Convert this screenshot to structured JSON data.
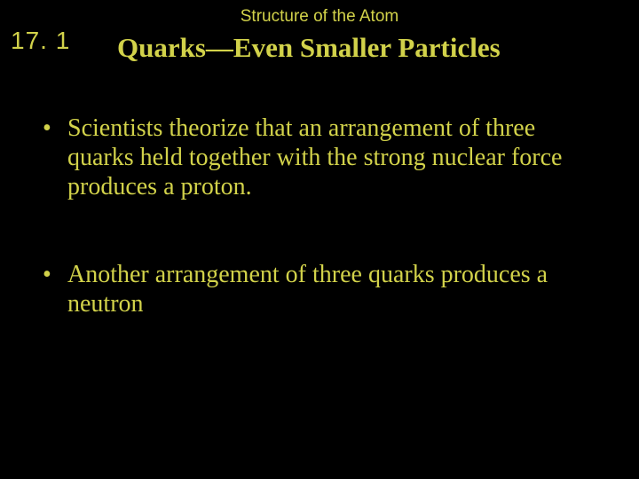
{
  "slide": {
    "chapter_title": "Structure of the Atom",
    "section_number": "17. 1",
    "heading": "Quarks—Even Smaller Particles",
    "bullets": [
      "Scientists theorize that an arrangement of three quarks held together with the strong nuclear force produces a proton.",
      "Another arrangement of three quarks produces a neutron"
    ]
  },
  "styling": {
    "background_color": "#000000",
    "text_color": "#d2d24a",
    "chapter_title_fontsize": 19,
    "chapter_title_font": "Arial",
    "section_number_fontsize": 28,
    "section_number_font": "Arial",
    "heading_fontsize": 31,
    "heading_font": "Times New Roman",
    "heading_weight": "bold",
    "body_fontsize": 28,
    "body_font": "Times New Roman",
    "line_height": 1.18,
    "bullet_spacing": 66,
    "slide_width": 720,
    "slide_height": 540
  }
}
